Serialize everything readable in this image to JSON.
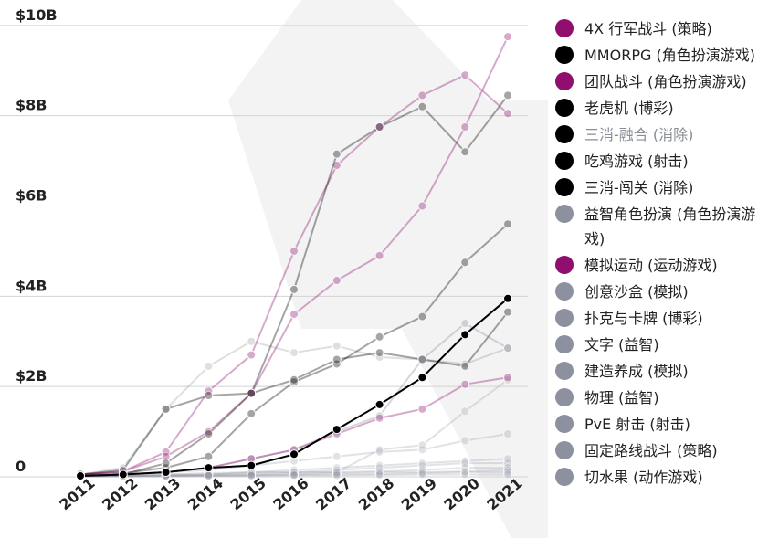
{
  "chart_data": {
    "type": "line",
    "x": [
      "2011",
      "2012",
      "2013",
      "2014",
      "2015",
      "2016",
      "2017",
      "2018",
      "2019",
      "2020",
      "2021"
    ],
    "yticks": [
      {
        "value": 0,
        "label": "0"
      },
      {
        "value": 2,
        "label": "$2B"
      },
      {
        "value": 4,
        "label": "$4B"
      },
      {
        "value": 6,
        "label": "$6B"
      },
      {
        "value": 8,
        "label": "$8B"
      },
      {
        "value": 10,
        "label": "$10B"
      }
    ],
    "ylim": [
      0,
      10.3
    ],
    "grid": true,
    "legend_position": "right",
    "series": [
      {
        "name": "4X 行军战斗 (策略)",
        "color": "#8f0e6e",
        "legend_color": "#8f0e6e",
        "opacity": 0.35,
        "values": [
          0.05,
          0.12,
          0.55,
          1.9,
          2.7,
          5.0,
          6.9,
          7.75,
          8.45,
          8.9,
          8.05
        ]
      },
      {
        "name": "MMORPG (角色扮演游戏)",
        "color": "#000000",
        "legend_color": "#000000",
        "opacity": 0.35,
        "values": [
          0.05,
          0.15,
          1.5,
          1.8,
          1.85,
          4.15,
          7.15,
          7.75,
          8.2,
          7.2,
          8.45
        ]
      },
      {
        "name": "团队战斗 (角色扮演游戏)",
        "color": "#8f0e6e",
        "legend_color": "#8f0e6e",
        "opacity": 0.35,
        "values": [
          0.05,
          0.12,
          0.45,
          1.0,
          1.85,
          3.6,
          4.35,
          4.9,
          6.0,
          7.75,
          9.75
        ]
      },
      {
        "name": "老虎机 (博彩)",
        "color": "#000000",
        "legend_color": "#000000",
        "opacity": 0.35,
        "values": [
          0.05,
          0.08,
          0.2,
          0.45,
          1.4,
          2.1,
          2.5,
          3.1,
          3.55,
          4.75,
          5.6
        ]
      },
      {
        "name": "三消-融合 (消除)",
        "color": "#000000",
        "legend_color": "#000000",
        "opacity": 0.12,
        "faded": true,
        "values": [
          0.05,
          0.2,
          1.5,
          2.45,
          3.0,
          2.75,
          2.9,
          2.65,
          2.6,
          2.5,
          2.85
        ]
      },
      {
        "name": "吃鸡游戏 (射击)",
        "color": "#000000",
        "legend_color": "#000000",
        "opacity": 0.35,
        "values": [
          0.02,
          0.05,
          0.3,
          0.95,
          1.85,
          2.15,
          2.6,
          2.75,
          2.6,
          2.45,
          3.65
        ]
      },
      {
        "name": "三消-闯关 (消除)",
        "color": "#000000",
        "legend_color": "#000000",
        "opacity": 1.0,
        "values": [
          0.02,
          0.05,
          0.1,
          0.2,
          0.25,
          0.5,
          1.05,
          1.6,
          2.2,
          3.15,
          3.95
        ]
      },
      {
        "name": "益智角色扮演 (角色扮演游戏)",
        "color": "#8c909f",
        "legend_color": "#8c909f",
        "opacity": 0.35,
        "values": [
          0.02,
          0.05,
          0.1,
          0.2,
          0.4,
          0.6,
          1.0,
          1.35,
          2.6,
          3.4,
          2.85
        ]
      },
      {
        "name": "模拟运动 (运动游戏)",
        "color": "#8f0e6e",
        "legend_color": "#8f0e6e",
        "opacity": 0.35,
        "values": [
          0.02,
          0.05,
          0.1,
          0.2,
          0.4,
          0.6,
          0.95,
          1.3,
          1.5,
          2.05,
          2.2
        ]
      },
      {
        "name": "创意沙盒 (模拟)",
        "color": "#8c909f",
        "legend_color": "#8c909f",
        "opacity": 0.25,
        "values": [
          0.02,
          0.02,
          0.05,
          0.05,
          0.1,
          0.1,
          0.1,
          0.6,
          0.7,
          1.45,
          2.15
        ]
      },
      {
        "name": "扑克与卡牌 (博彩)",
        "color": "#8c909f",
        "legend_color": "#8c909f",
        "opacity": 0.25,
        "values": [
          0.02,
          0.05,
          0.1,
          0.15,
          0.25,
          0.35,
          0.45,
          0.55,
          0.6,
          0.8,
          0.95
        ]
      },
      {
        "name": "文字 (益智)",
        "color": "#8c909f",
        "legend_color": "#8c909f",
        "opacity": 0.25,
        "values": [
          0.02,
          0.03,
          0.05,
          0.08,
          0.1,
          0.15,
          0.2,
          0.25,
          0.3,
          0.35,
          0.4
        ]
      },
      {
        "name": "建造养成 (模拟)",
        "color": "#8c909f",
        "legend_color": "#8c909f",
        "opacity": 0.25,
        "values": [
          0.02,
          0.02,
          0.03,
          0.05,
          0.08,
          0.1,
          0.15,
          0.2,
          0.25,
          0.3,
          0.3
        ]
      },
      {
        "name": "物理 (益智)",
        "color": "#8c909f",
        "legend_color": "#8c909f",
        "opacity": 0.25,
        "values": [
          0.01,
          0.02,
          0.03,
          0.04,
          0.05,
          0.08,
          0.1,
          0.12,
          0.15,
          0.2,
          0.2
        ]
      },
      {
        "name": "PvE 射击 (射击)",
        "color": "#8c909f",
        "legend_color": "#8c909f",
        "opacity": 0.25,
        "values": [
          0.01,
          0.01,
          0.02,
          0.03,
          0.04,
          0.05,
          0.08,
          0.1,
          0.1,
          0.12,
          0.15
        ]
      },
      {
        "name": "固定路线战斗 (策略)",
        "color": "#8c909f",
        "legend_color": "#8c909f",
        "opacity": 0.25,
        "values": [
          0.01,
          0.01,
          0.02,
          0.02,
          0.03,
          0.04,
          0.05,
          0.06,
          0.08,
          0.1,
          0.1
        ]
      },
      {
        "name": "切水果 (动作游戏)",
        "color": "#8c909f",
        "legend_color": "#8c909f",
        "opacity": 0.25,
        "values": [
          0.01,
          0.01,
          0.01,
          0.02,
          0.02,
          0.03,
          0.03,
          0.04,
          0.05,
          0.05,
          0.05
        ]
      }
    ]
  }
}
